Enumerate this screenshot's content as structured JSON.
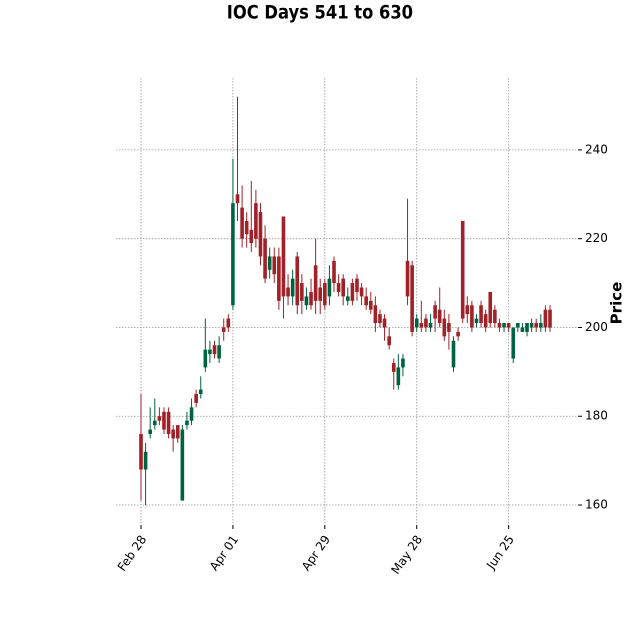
{
  "chart_data": {
    "type": "candlestick",
    "title": "IOC Days 541 to 630",
    "y_label": "Price",
    "categories": [
      "Feb 28",
      null,
      null,
      null,
      null,
      null,
      null,
      null,
      null,
      null,
      null,
      null,
      null,
      null,
      null,
      null,
      null,
      null,
      null,
      null,
      "Apr 01",
      null,
      null,
      null,
      null,
      null,
      null,
      null,
      null,
      null,
      null,
      null,
      null,
      null,
      null,
      null,
      null,
      null,
      null,
      null,
      "Apr 29",
      null,
      null,
      null,
      null,
      null,
      null,
      null,
      null,
      null,
      null,
      null,
      null,
      null,
      null,
      null,
      null,
      null,
      null,
      null,
      "May 28",
      null,
      null,
      null,
      null,
      null,
      null,
      null,
      null,
      null,
      null,
      null,
      null,
      null,
      null,
      null,
      null,
      null,
      null,
      null,
      "Jun 25",
      null,
      null,
      null,
      null,
      null,
      null,
      null,
      null,
      null
    ],
    "open": [
      176,
      168,
      176,
      178,
      180,
      181,
      181,
      177,
      178,
      161,
      178,
      179,
      185,
      185,
      191,
      194,
      196,
      193,
      200,
      202,
      205,
      230,
      227,
      224,
      222,
      228,
      226,
      220,
      213,
      216,
      216,
      225,
      209,
      207,
      216,
      210,
      205,
      208,
      214,
      209,
      210,
      207,
      215,
      210,
      211,
      206,
      210,
      211,
      209,
      207,
      206,
      205,
      203,
      202,
      198,
      192,
      187,
      191,
      215,
      214,
      200,
      201,
      202,
      200,
      205,
      204,
      202,
      201,
      191,
      199,
      224,
      205,
      205,
      201,
      205,
      203,
      208,
      204,
      201,
      200,
      201,
      193,
      200,
      199,
      199,
      200,
      201,
      200,
      204,
      204
    ],
    "high": [
      185,
      174,
      182,
      184,
      182,
      182,
      182,
      178,
      178,
      178,
      181,
      184,
      186,
      189,
      202,
      197,
      197,
      198,
      202,
      203,
      238,
      252,
      232,
      226,
      233,
      231,
      228,
      223,
      218,
      218,
      218,
      225,
      212,
      213,
      217,
      212,
      209,
      211,
      220,
      211,
      211,
      214,
      216,
      212,
      212,
      209,
      211,
      212,
      210,
      209,
      208,
      207,
      204,
      203,
      200,
      193,
      194,
      194,
      229,
      215,
      203,
      206,
      203,
      203,
      206,
      209,
      204,
      203,
      198,
      200,
      224,
      207,
      206,
      203,
      206,
      204,
      208,
      205,
      202,
      201,
      201,
      200,
      201,
      201,
      201,
      202,
      202,
      203,
      205,
      205
    ],
    "low": [
      161,
      160,
      175,
      177,
      178,
      176,
      175,
      172,
      174,
      161,
      177,
      178,
      182,
      184,
      190,
      192,
      193,
      192,
      197,
      199,
      204,
      224,
      218,
      218,
      217,
      218,
      214,
      210,
      211,
      210,
      204,
      202,
      205,
      205,
      203,
      203,
      204,
      204,
      203,
      203,
      204,
      205,
      208,
      207,
      205,
      205,
      205,
      206,
      205,
      204,
      203,
      199,
      200,
      197,
      195,
      186,
      186,
      189,
      205,
      198,
      199,
      199,
      199,
      199,
      199,
      200,
      197,
      195,
      190,
      197,
      201,
      201,
      199,
      200,
      200,
      199,
      200,
      200,
      199,
      199,
      199,
      192,
      199,
      199,
      198,
      199,
      199,
      199,
      199,
      199
    ],
    "close": [
      168,
      172,
      177,
      179,
      179,
      177,
      176,
      175,
      175,
      177,
      179,
      182,
      183,
      186,
      195,
      195,
      194,
      196,
      199,
      200,
      228,
      228,
      220,
      221,
      219,
      220,
      216,
      211,
      216,
      212,
      206,
      207,
      207,
      211,
      205,
      206,
      207,
      205,
      206,
      206,
      205,
      211,
      210,
      208,
      207,
      207,
      206,
      208,
      207,
      205,
      204,
      201,
      201,
      200,
      196,
      190,
      191,
      193,
      207,
      199,
      202,
      200,
      200,
      201,
      202,
      201,
      198,
      199,
      197,
      198,
      202,
      203,
      200,
      202,
      201,
      200,
      201,
      201,
      200,
      201,
      200,
      200,
      201,
      200,
      201,
      201,
      200,
      201,
      200,
      200
    ],
    "up_color": "#006340",
    "down_color": "#a02128",
    "ylim": [
      155.5,
      256.2
    ],
    "yticks": [
      160,
      180,
      200,
      220,
      240
    ],
    "grid": true
  }
}
